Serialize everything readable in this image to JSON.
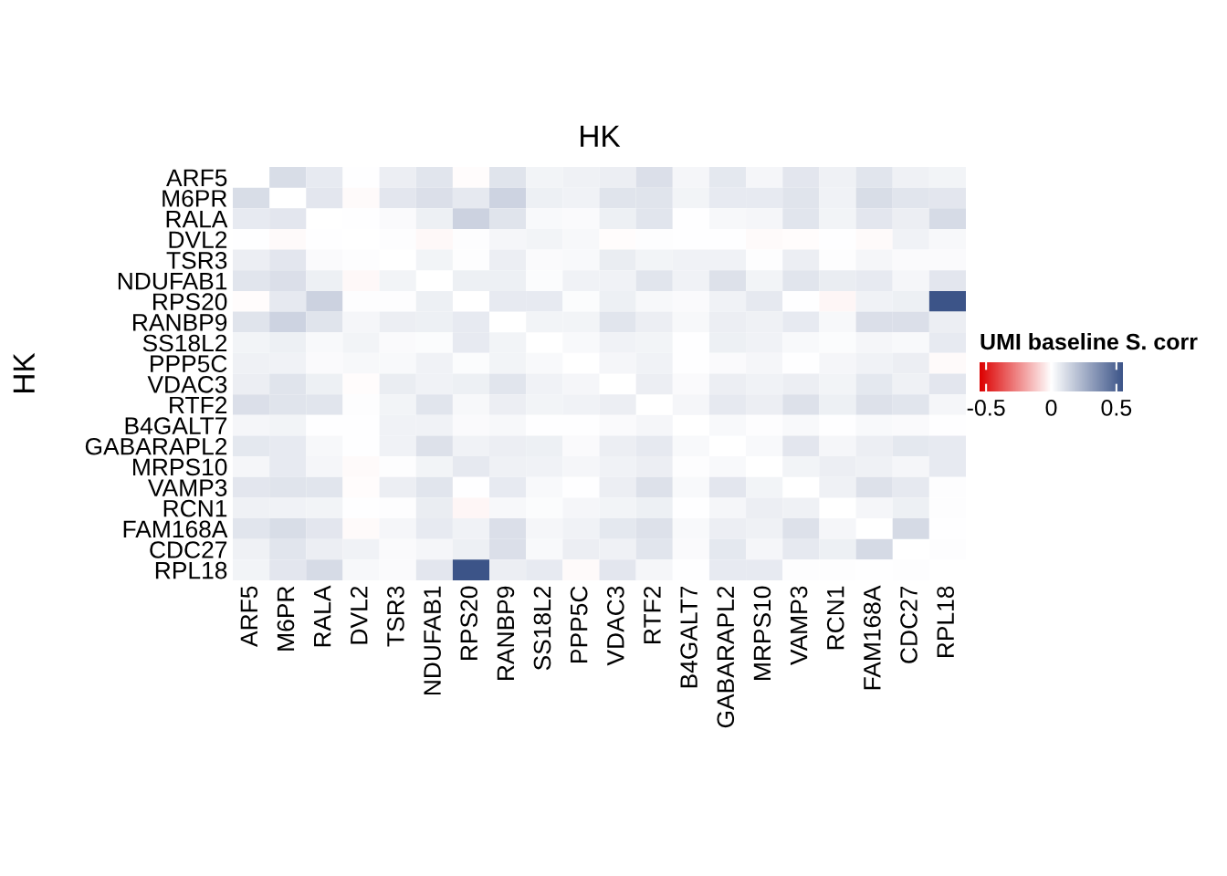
{
  "chart_data": {
    "type": "heatmap",
    "title": "HK",
    "ylabel": "HK",
    "clabel": "UMI baseline S. corr",
    "categories": [
      "ARF5",
      "M6PR",
      "RALA",
      "DVL2",
      "TSR3",
      "NDUFAB1",
      "RPS20",
      "RANBP9",
      "SS18L2",
      "PPP5C",
      "VDAC3",
      "RTF2",
      "B4GALT7",
      "GABARAPL2",
      "MRPS10",
      "VAMP3",
      "RCN1",
      "FAM168A",
      "CDC27",
      "RPL18"
    ],
    "y_categories": [
      "ARF5",
      "M6PR",
      "RALA",
      "DVL2",
      "TSR3",
      "NDUFAB1",
      "RPS20",
      "RANBP9",
      "SS18L2",
      "PPP5C",
      "VDAC3",
      "RTF2",
      "B4GALT7",
      "GABARAPL2",
      "MRPS10",
      "VAMP3",
      "RCN1",
      "FAM168A",
      "CDC27",
      "RPL18"
    ],
    "cells": [
      [
        null,
        0.11,
        0.065,
        0,
        0.055,
        0.085,
        -0.005,
        0.09,
        0.035,
        0.045,
        0.055,
        0.1,
        0.03,
        0.075,
        0.03,
        0.08,
        0.045,
        0.085,
        0.045,
        0.035
      ],
      [
        0.11,
        null,
        0.08,
        -0.01,
        0.08,
        0.1,
        0.07,
        0.14,
        0.05,
        0.04,
        0.09,
        0.09,
        0.035,
        0.065,
        0.065,
        0.09,
        0.04,
        0.11,
        0.085,
        0.08
      ],
      [
        0.065,
        0.08,
        null,
        0,
        0.015,
        0.05,
        0.145,
        0.09,
        0.02,
        0.015,
        0.05,
        0.085,
        0,
        0.025,
        0.03,
        0.085,
        0.035,
        0.08,
        0.055,
        0.115
      ],
      [
        0,
        -0.01,
        0,
        null,
        0.005,
        -0.015,
        0.005,
        0.03,
        0.035,
        0.025,
        -0.005,
        0.005,
        0,
        0,
        -0.01,
        -0.005,
        0,
        -0.01,
        0.04,
        0.025
      ],
      [
        0.055,
        0.08,
        0.015,
        0.005,
        null,
        0.035,
        0.005,
        0.055,
        0.015,
        0.02,
        0.06,
        0.035,
        0.04,
        0.04,
        0.005,
        0.055,
        0.005,
        0.03,
        0.015,
        0.015
      ],
      [
        0.085,
        0.1,
        0.05,
        -0.015,
        0.035,
        null,
        0.05,
        0.05,
        0.01,
        0.04,
        0.04,
        0.085,
        0.04,
        0.095,
        0.035,
        0.085,
        0.06,
        0.065,
        0.03,
        0.08
      ],
      [
        -0.005,
        0.07,
        0.145,
        0.005,
        0.005,
        0.05,
        null,
        0.065,
        0.065,
        0.01,
        0.05,
        0.025,
        0.015,
        0.04,
        0.07,
        0,
        -0.02,
        0.04,
        0.05,
        0.55
      ],
      [
        0.09,
        0.14,
        0.09,
        0.03,
        0.055,
        0.05,
        0.065,
        null,
        0.035,
        0.035,
        0.085,
        0.055,
        0.025,
        0.055,
        0.045,
        0.065,
        0.025,
        0.1,
        0.1,
        0.055
      ],
      [
        0.035,
        0.05,
        0.02,
        0.035,
        0.015,
        0.01,
        0.065,
        0.035,
        null,
        0.02,
        0.04,
        0.035,
        0,
        0.05,
        0.04,
        0.02,
        0.01,
        0.03,
        0.02,
        0.065
      ],
      [
        0.045,
        0.04,
        0.015,
        0.025,
        0.02,
        0.04,
        0.01,
        0.035,
        0.02,
        null,
        0.03,
        0.04,
        0,
        0.015,
        0.03,
        0,
        0.03,
        0.04,
        0.055,
        -0.01
      ],
      [
        0.055,
        0.09,
        0.05,
        -0.005,
        0.06,
        0.04,
        0.05,
        0.085,
        0.04,
        0.03,
        null,
        0.055,
        0.015,
        0.055,
        0.04,
        0.055,
        0.035,
        0.075,
        0.045,
        0.08
      ],
      [
        0.1,
        0.09,
        0.085,
        0.005,
        0.035,
        0.085,
        0.025,
        0.055,
        0.035,
        0.04,
        0.055,
        null,
        0.03,
        0.07,
        0.055,
        0.095,
        0.05,
        0.095,
        0.085,
        0.03
      ],
      [
        0.03,
        0.035,
        0,
        0,
        0.04,
        0.04,
        0.015,
        0.025,
        0,
        0,
        0.015,
        0.03,
        null,
        0.02,
        0.005,
        0.02,
        0,
        0.02,
        0.015,
        0
      ],
      [
        0.075,
        0.065,
        0.025,
        0,
        0.04,
        0.095,
        0.04,
        0.055,
        0.05,
        0.015,
        0.055,
        0.07,
        0.02,
        null,
        0.02,
        0.08,
        0.03,
        0.055,
        0.075,
        0.065
      ],
      [
        0.03,
        0.065,
        0.03,
        -0.01,
        0.005,
        0.035,
        0.07,
        0.045,
        0.04,
        0.03,
        0.04,
        0.055,
        0.005,
        0.02,
        null,
        0.035,
        0.055,
        0.045,
        0.03,
        0.065
      ],
      [
        0.08,
        0.09,
        0.085,
        -0.005,
        0.055,
        0.085,
        0,
        0.065,
        0.02,
        0,
        0.055,
        0.095,
        0.02,
        0.08,
        0.035,
        null,
        0.045,
        0.095,
        0.07,
        0.005
      ],
      [
        0.045,
        0.04,
        0.035,
        0,
        0.005,
        0.06,
        -0.02,
        0.025,
        0.01,
        0.03,
        0.035,
        0.05,
        0,
        0.03,
        0.055,
        0.045,
        null,
        0.03,
        0.05,
        0.005
      ],
      [
        0.085,
        0.11,
        0.08,
        -0.01,
        0.03,
        0.065,
        0.04,
        0.1,
        0.03,
        0.04,
        0.075,
        0.095,
        0.02,
        0.055,
        0.045,
        0.095,
        0.03,
        null,
        0.12,
        0
      ],
      [
        0.045,
        0.085,
        0.055,
        0.04,
        0.015,
        0.03,
        0.05,
        0.1,
        0.02,
        0.055,
        0.045,
        0.085,
        0.015,
        0.075,
        0.03,
        0.07,
        0.05,
        0.12,
        null,
        0.005
      ],
      [
        0.035,
        0.08,
        0.115,
        0.025,
        0.015,
        0.08,
        0.55,
        0.055,
        0.065,
        -0.01,
        0.08,
        0.03,
        0,
        0.065,
        0.065,
        0.005,
        0.005,
        0,
        0.005,
        null
      ]
    ],
    "clim": [
      -0.55,
      0.55
    ],
    "cticks": [
      -0.5,
      0,
      0.5
    ]
  }
}
